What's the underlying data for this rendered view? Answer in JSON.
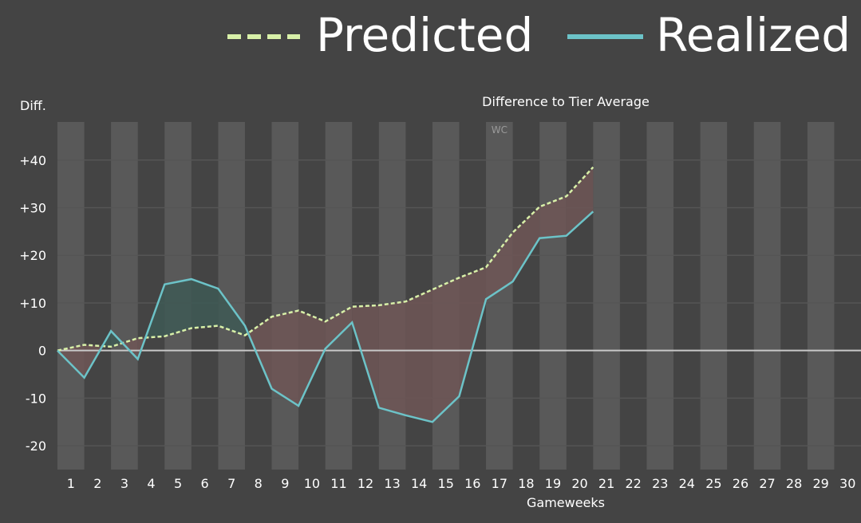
{
  "colors": {
    "background": "#444444",
    "predicted": "#d8f0a8",
    "realized": "#6cc3c8",
    "band": "#595959",
    "grid": "#555555",
    "zero_line": "#c8c8c8",
    "fill_below_predicted": "#6e5656",
    "fill_above_predicted": "#3e5955"
  },
  "chart_data": {
    "type": "line",
    "title": "Difference to Tier Average",
    "xlabel": "Gameweeks",
    "ylabel": "Diff.",
    "categories": [
      "1",
      "2",
      "3",
      "4",
      "5",
      "6",
      "7",
      "8",
      "9",
      "10",
      "11",
      "12",
      "13",
      "14",
      "15",
      "16",
      "17",
      "18",
      "19",
      "20",
      "21",
      "22",
      "23",
      "24",
      "25",
      "26",
      "27",
      "28",
      "29",
      "30"
    ],
    "x_range": [
      1,
      30
    ],
    "ylim": [
      -25,
      48
    ],
    "y_ticks": [
      {
        "value": 40,
        "label": "+40"
      },
      {
        "value": 30,
        "label": "+30"
      },
      {
        "value": 20,
        "label": "+20"
      },
      {
        "value": 10,
        "label": "+10"
      },
      {
        "value": 0,
        "label": "0"
      },
      {
        "value": -10,
        "label": "-10"
      },
      {
        "value": -20,
        "label": "-20"
      }
    ],
    "legend": {
      "placement": "top-right",
      "items": [
        {
          "label": "Predicted",
          "style": "dashed"
        },
        {
          "label": "Realized",
          "style": "solid"
        }
      ]
    },
    "annotations": [
      {
        "text": "WC",
        "gameweek": 17
      }
    ],
    "series": [
      {
        "name": "Predicted",
        "x": [
          0.5,
          1.5,
          2.5,
          3.5,
          4.5,
          5.5,
          6.5,
          7.5,
          8.5,
          9.5,
          10.5,
          11.5,
          12.5,
          13.5,
          14.5,
          15.5,
          16.5,
          17.5,
          18.5,
          19.5,
          20.5
        ],
        "values": [
          0,
          1.2,
          0.8,
          2.6,
          3.0,
          4.7,
          5.2,
          3.2,
          7.1,
          8.4,
          6.1,
          9.2,
          9.5,
          10.3,
          12.8,
          15.3,
          17.5,
          24.8,
          30.2,
          32.4,
          38.5
        ]
      },
      {
        "name": "Realized",
        "x": [
          0.5,
          1.5,
          2.5,
          3.5,
          4.5,
          5.5,
          6.5,
          7.5,
          8.5,
          9.5,
          10.5,
          11.5,
          12.5,
          13.5,
          14.5,
          15.5,
          16.5,
          17.5,
          18.5,
          19.5,
          20.5
        ],
        "values": [
          0,
          -5.7,
          4.1,
          -1.8,
          13.9,
          15.0,
          13.0,
          5.2,
          -8.0,
          -11.6,
          0.4,
          5.9,
          -12.0,
          -13.6,
          -15.0,
          -9.6,
          10.8,
          14.5,
          23.6,
          24.1,
          29.2
        ]
      }
    ]
  }
}
